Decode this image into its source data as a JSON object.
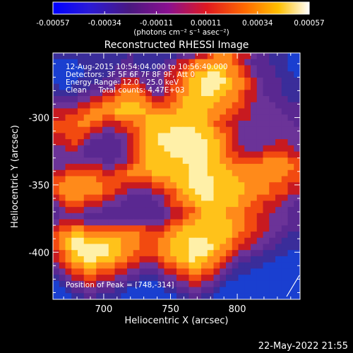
{
  "chart_data": {
    "type": "heatmap",
    "title": "Reconstructed RHESSI Image",
    "xlabel": "Heliocentric X (arcsec)",
    "ylabel": "Heliocentric Y (arcsec)",
    "xlim": [
      662,
      847
    ],
    "ylim": [
      -435,
      -252
    ],
    "x_ticks": [
      700,
      750,
      800
    ],
    "y_ticks": [
      -300,
      -350,
      -400
    ],
    "colorbar": {
      "ticks": [
        "-0.00057",
        "-0.00034",
        "-0.00011",
        "0.00011",
        "0.00034",
        "0.00057"
      ],
      "tick_values": [
        -0.00057,
        -0.00034,
        -0.00011,
        0.00011,
        0.00034,
        0.00057
      ],
      "unit": "(photons cm⁻² s⁻¹ asec⁻²)",
      "range": [
        -0.00057,
        0.00057
      ]
    },
    "annotations": [
      "12-Aug-2015 10:54:04.000 to 10:56:40.000",
      "Detectors: 3F 5F 6F 7F 8F 9F, Att 0",
      "Energy Range: 12.0 - 25.0 keV",
      "Clean     Total counts: 4.47E+03"
    ],
    "peak_label": "Position of Peak = [748,-314]",
    "peak": [
      748,
      -314
    ],
    "grid_cols": 40,
    "grid_rows": 40,
    "intensity_grid": [
      "2222222222223222222234455677765543322211",
      "1111222222233222223455677777765433322211",
      "1111122222333322234556777888776543332211",
      "1111122223344433345567788998776543332221",
      "1111222233455543345567889999877654333222",
      "2112223334566654345667889998877654333222",
      "2222334455677765445677889988776554333222",
      "3333445566777776556678888887776554433322",
      "4444556677788877666778888877766544443333",
      "5555667777888887777788888777665544444333",
      "5566677766777778888888888776655544444433",
      "6666776655566778888888888766554444444443",
      "6666665544556678888999988876654444444444",
      "5566654433445678899999998877654444444444",
      "5556543333345678899999999887654444445544",
      "4455433333345678889999999887655444555554",
      "4444433333345678888999999887665555666655",
      "4444444433445678888889999887766666777766",
      "4455555544556778888888999888777777777776",
      "5566666655667777888888999888877777777766",
      "6677777666666666777888999988887777777666",
      "6777777766655555667788999988888777766655",
      "6777777766554444556678899988888777766655",
      "5677766655443333445677889988887776665544",
      "4566655544433333345667788888887766555443",
      "3455544433333333334556678888777666554433",
      "3444433333333333334556778888777665544433",
      "4555544444444444445667788888877665544433",
      "5667766666666665556778888888877665544333",
      "6778877777777766667788888888876655443322",
      "6789988888877766677888999888766554433222",
      "6789999998877766677888999987765544332222",
      "5678999998877666677888999877654433222211",
      "5678899888776655567788988776543322221111",
      "4567788777665544456677887765432222111111",
      "3456677666554433345566776654322211111111",
      "2345566555443322234455665543221111111111",
      "1234455444332211123344554432111111111111",
      "1123344333221111112233443321111111111111",
      "1112233222211111111122332211111111111111"
    ],
    "footer_date": "22-May-2022 21:55"
  }
}
